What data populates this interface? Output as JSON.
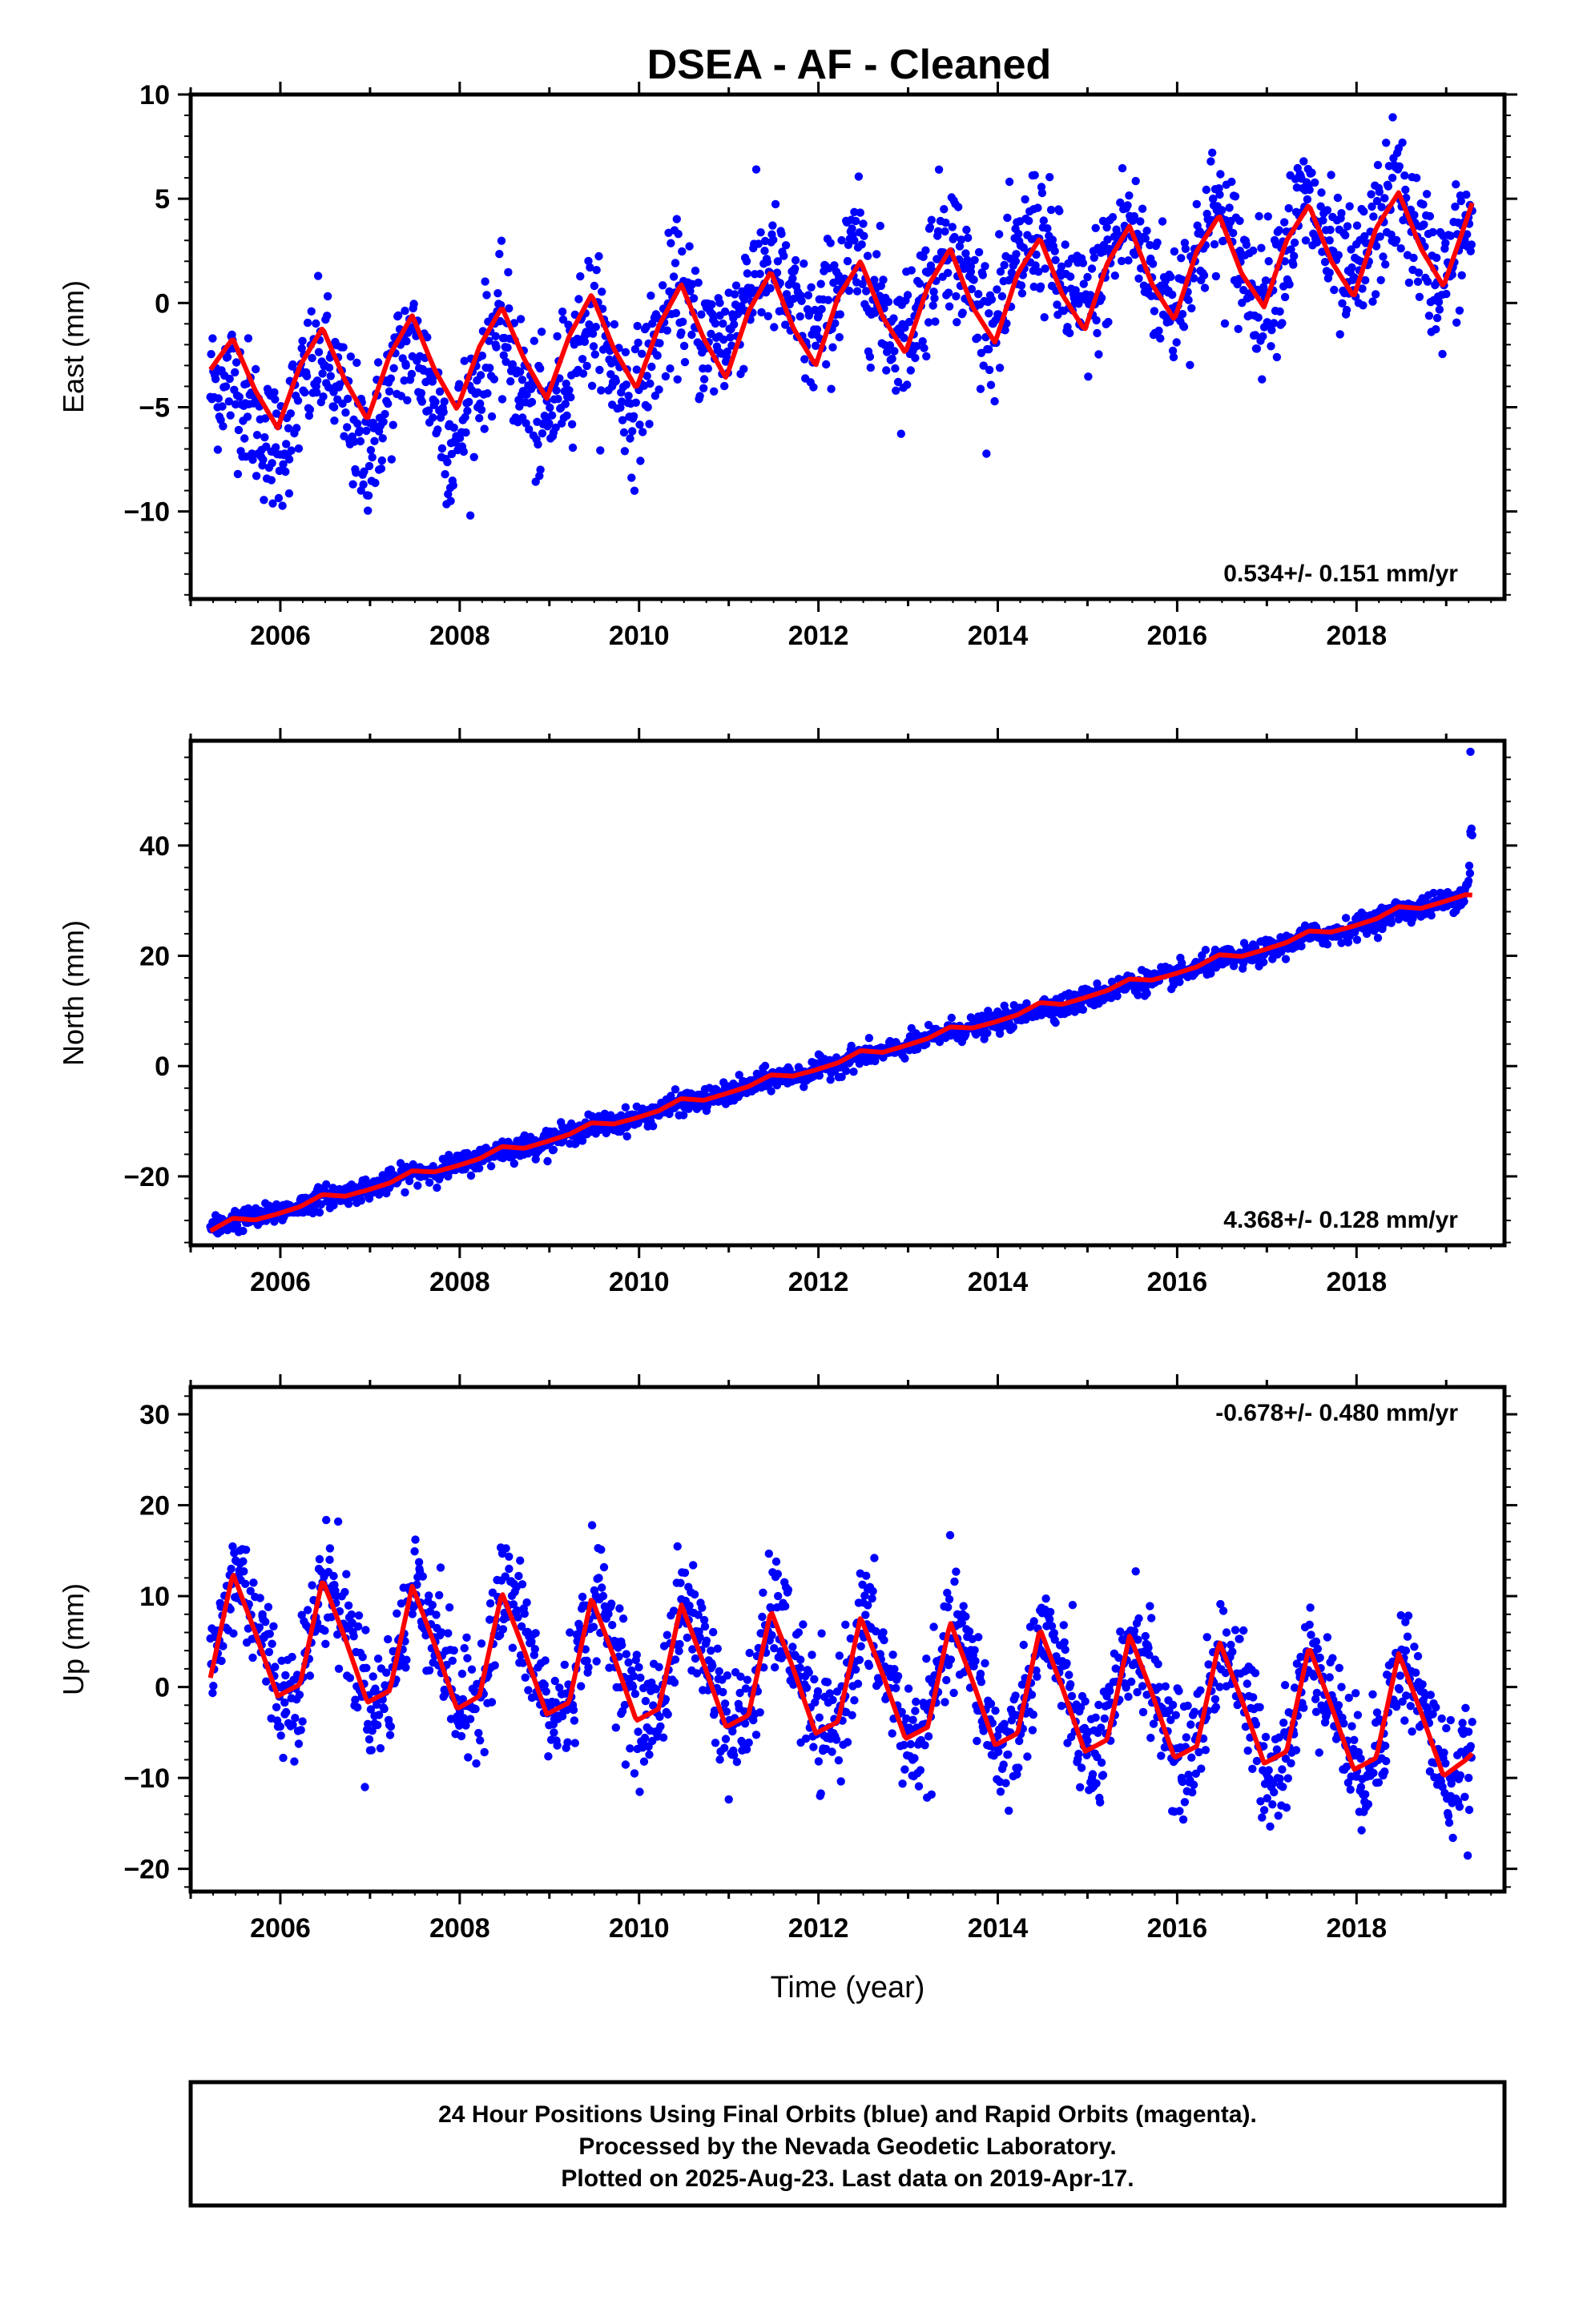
{
  "title": "DSEA  - AF - Cleaned",
  "colors": {
    "points": "#0000ff",
    "fit": "#ff0000",
    "frame": "#000000"
  },
  "footer": {
    "line1": "24 Hour Positions Using Final Orbits (blue) and Rapid Orbits (magenta).",
    "line2": "Processed by the Nevada Geodetic Laboratory.",
    "line3": "Plotted on 2025-Aug-23. Last data on 2019-Apr-17."
  },
  "chart_data": [
    {
      "type": "scatter",
      "ylabel": "East (mm)",
      "xlabel": "",
      "xlim": [
        2005.0,
        2019.65
      ],
      "ylim": [
        -14.2,
        10.0
      ],
      "xticks": [
        2006,
        2008,
        2010,
        2012,
        2014,
        2016,
        2018
      ],
      "yticks": [
        -10,
        -5,
        0,
        5,
        10
      ],
      "rate_label": "0.534+/- 0.151 mm/yr",
      "rate_position": "bottom-right",
      "data_range": [
        2005.22,
        2019.29
      ],
      "series": [
        {
          "kind": "points",
          "x": [
            2005.3,
            2005.6,
            2005.9,
            2006.1,
            2006.4,
            2006.6,
            2006.9,
            2007.1,
            2007.4,
            2007.7,
            2007.9,
            2008.2,
            2008.4,
            2008.7,
            2008.9,
            2009.2,
            2009.4,
            2009.7,
            2009.9,
            2010.2,
            2010.4,
            2010.7,
            2010.9,
            2011.2,
            2011.4,
            2011.7,
            2011.9,
            2012.2,
            2012.4,
            2012.7,
            2012.9,
            2013.2,
            2013.4,
            2013.7,
            2013.9,
            2014.2,
            2014.4,
            2014.7,
            2014.9,
            2015.2,
            2015.4,
            2015.7,
            2015.9,
            2016.2,
            2016.4,
            2016.7,
            2016.9,
            2017.2,
            2017.4,
            2017.7,
            2017.9,
            2018.2,
            2018.4,
            2018.7,
            2018.9,
            2019.2
          ],
          "y": [
            -5.0,
            -6.5,
            -8.5,
            -7.5,
            -4.0,
            -5.0,
            -9.0,
            -8.0,
            -3.0,
            -5.5,
            -9.5,
            -5.0,
            -2.0,
            -5.5,
            -8.0,
            -4.5,
            -1.5,
            -4.0,
            -6.5,
            -2.5,
            0.5,
            -2.0,
            0.0,
            2.0,
            2.5,
            1.0,
            -0.5,
            1.5,
            3.0,
            0.0,
            -1.5,
            1.5,
            4.5,
            1.5,
            -0.5,
            2.0,
            4.5,
            1.5,
            0.0,
            1.5,
            4.5,
            2.0,
            0.5,
            2.0,
            5.0,
            2.5,
            0.5,
            2.0,
            5.5,
            3.0,
            1.0,
            3.0,
            6.0,
            3.0,
            1.0,
            3.0
          ]
        },
        {
          "kind": "fit",
          "x": [
            2005.22,
            2005.47,
            2005.72,
            2005.97,
            2006.22,
            2006.47,
            2006.72,
            2006.97,
            2007.22,
            2007.47,
            2007.72,
            2007.97,
            2008.22,
            2008.47,
            2008.72,
            2008.97,
            2009.22,
            2009.47,
            2009.72,
            2009.97,
            2010.22,
            2010.47,
            2010.72,
            2010.97,
            2011.22,
            2011.47,
            2011.72,
            2011.97,
            2012.22,
            2012.47,
            2012.72,
            2012.97,
            2013.22,
            2013.47,
            2013.72,
            2013.97,
            2014.22,
            2014.47,
            2014.72,
            2014.97,
            2015.22,
            2015.47,
            2015.72,
            2015.97,
            2016.22,
            2016.47,
            2016.72,
            2016.97,
            2017.22,
            2017.47,
            2017.72,
            2017.97,
            2018.22,
            2018.47,
            2018.72,
            2018.97,
            2019.22,
            2019.29
          ],
          "y": [
            -3.2,
            -1.7,
            -4.2,
            -6.0,
            -3.0,
            -1.2,
            -3.7,
            -5.6,
            -2.5,
            -0.6,
            -3.2,
            -5.1,
            -2.1,
            -0.2,
            -2.7,
            -4.6,
            -1.6,
            0.4,
            -2.2,
            -4.1,
            -1.1,
            0.9,
            -1.7,
            -3.6,
            -0.4,
            1.5,
            -1.2,
            -3.0,
            0.3,
            2.0,
            -0.7,
            -2.4,
            0.8,
            2.6,
            -0.2,
            -1.9,
            1.4,
            3.1,
            0.4,
            -1.3,
            1.9,
            3.7,
            0.9,
            -0.8,
            2.5,
            4.2,
            1.4,
            -0.2,
            3.0,
            4.7,
            2.0,
            0.3,
            3.6,
            5.3,
            2.6,
            0.8,
            3.9,
            4.8
          ]
        }
      ]
    },
    {
      "type": "scatter",
      "ylabel": "North (mm)",
      "xlabel": "",
      "xlim": [
        2005.0,
        2019.65
      ],
      "ylim": [
        -32.5,
        59.0
      ],
      "xticks": [
        2006,
        2008,
        2010,
        2012,
        2014,
        2016,
        2018
      ],
      "yticks": [
        -20,
        0,
        20,
        40
      ],
      "rate_label": "4.368+/- 0.128 mm/yr",
      "rate_position": "bottom-right",
      "data_range": [
        2005.22,
        2019.29
      ],
      "series": [
        {
          "kind": "points",
          "x": [
            2005.3,
            2005.8,
            2006.3,
            2006.8,
            2007.3,
            2007.8,
            2008.3,
            2008.8,
            2009.3,
            2009.8,
            2010.3,
            2010.8,
            2011.3,
            2011.8,
            2012.3,
            2012.8,
            2013.3,
            2013.8,
            2014.3,
            2014.8,
            2015.3,
            2015.8,
            2016.3,
            2016.8,
            2017.3,
            2017.8,
            2018.3,
            2018.8,
            2019.2,
            2019.27,
            2019.27
          ],
          "y": [
            -29.0,
            -27.0,
            -25.0,
            -22.5,
            -20.5,
            -18.5,
            -16.5,
            -14.0,
            -12.0,
            -10.0,
            -8.0,
            -6.0,
            -3.5,
            -1.5,
            0.5,
            2.5,
            5.0,
            7.0,
            9.0,
            11.0,
            13.5,
            15.5,
            17.5,
            19.5,
            22.0,
            24.0,
            26.5,
            29.0,
            31.0,
            42.5,
            57.0
          ]
        },
        {
          "kind": "fit",
          "x": [
            2005.22,
            2005.47,
            2005.72,
            2005.97,
            2006.22,
            2006.47,
            2006.72,
            2006.97,
            2007.22,
            2007.47,
            2007.72,
            2007.97,
            2008.22,
            2008.47,
            2008.72,
            2008.97,
            2009.22,
            2009.47,
            2009.72,
            2009.97,
            2010.22,
            2010.47,
            2010.72,
            2010.97,
            2011.22,
            2011.47,
            2011.72,
            2011.97,
            2012.22,
            2012.47,
            2012.72,
            2012.97,
            2013.22,
            2013.47,
            2013.72,
            2013.97,
            2014.22,
            2014.47,
            2014.72,
            2014.97,
            2015.22,
            2015.47,
            2015.72,
            2015.97,
            2016.22,
            2016.47,
            2016.72,
            2016.97,
            2017.22,
            2017.47,
            2017.72,
            2017.97,
            2018.22,
            2018.47,
            2018.72,
            2018.97,
            2019.22,
            2019.29
          ],
          "y": [
            -29.9,
            -27.6,
            -27.9,
            -26.8,
            -25.5,
            -23.3,
            -23.6,
            -22.5,
            -21.2,
            -19.0,
            -19.2,
            -18.1,
            -16.8,
            -14.6,
            -14.9,
            -13.7,
            -12.4,
            -10.3,
            -10.5,
            -9.4,
            -8.1,
            -5.9,
            -6.2,
            -5.0,
            -3.7,
            -1.6,
            -1.8,
            -0.7,
            0.6,
            2.8,
            2.5,
            3.7,
            5.0,
            7.1,
            6.9,
            8.0,
            9.3,
            11.5,
            11.2,
            12.4,
            13.7,
            15.8,
            15.6,
            16.7,
            18.0,
            20.2,
            19.9,
            21.1,
            22.4,
            24.5,
            24.3,
            25.4,
            26.7,
            28.9,
            28.6,
            29.8,
            31.1,
            31.0
          ]
        }
      ]
    },
    {
      "type": "scatter",
      "ylabel": "Up (mm)",
      "xlabel": "Time (year)",
      "xlim": [
        2005.0,
        2019.65
      ],
      "ylim": [
        -22.5,
        33.0
      ],
      "xticks": [
        2006,
        2008,
        2010,
        2012,
        2014,
        2016,
        2018
      ],
      "yticks": [
        -20,
        -10,
        0,
        10,
        20,
        30
      ],
      "rate_label": "-0.678+/- 0.480 mm/yr",
      "rate_position": "top-right",
      "data_range": [
        2005.22,
        2019.29
      ],
      "series": [
        {
          "kind": "points",
          "x": [
            2005.3,
            2005.55,
            2005.8,
            2006.05,
            2006.3,
            2006.55,
            2006.8,
            2007.05,
            2007.3,
            2007.55,
            2007.8,
            2008.05,
            2008.3,
            2008.55,
            2008.8,
            2009.05,
            2009.3,
            2009.55,
            2009.8,
            2010.05,
            2010.3,
            2010.55,
            2010.8,
            2011.05,
            2011.3,
            2011.55,
            2011.8,
            2012.05,
            2012.3,
            2012.55,
            2012.8,
            2013.05,
            2013.3,
            2013.55,
            2013.8,
            2014.05,
            2014.3,
            2014.55,
            2014.8,
            2015.05,
            2015.3,
            2015.55,
            2015.8,
            2016.05,
            2016.3,
            2016.55,
            2016.8,
            2017.05,
            2017.3,
            2017.55,
            2017.8,
            2018.05,
            2018.3,
            2018.55,
            2018.8,
            2019.05,
            2019.25
          ],
          "y": [
            3.0,
            15.0,
            8.0,
            -3.0,
            4.0,
            14.0,
            7.0,
            -4.0,
            3.0,
            13.0,
            6.0,
            -4.0,
            2.0,
            13.0,
            5.0,
            -5.0,
            2.0,
            12.0,
            5.0,
            -6.0,
            1.0,
            11.0,
            4.0,
            -7.0,
            0.0,
            10.0,
            3.0,
            -7.0,
            -1.0,
            9.0,
            2.0,
            -8.0,
            -1.0,
            8.0,
            1.0,
            -9.0,
            -2.0,
            8.0,
            0.0,
            -10.0,
            -3.0,
            7.0,
            0.0,
            -10.0,
            -3.0,
            6.0,
            -1.0,
            -11.0,
            -4.0,
            5.0,
            -2.0,
            -11.0,
            -4.0,
            4.0,
            -3.0,
            -12.0,
            -10.0
          ]
        },
        {
          "kind": "fit",
          "x": [
            2005.22,
            2005.47,
            2005.72,
            2005.97,
            2006.22,
            2006.47,
            2006.72,
            2006.97,
            2007.22,
            2007.47,
            2007.72,
            2007.97,
            2008.22,
            2008.47,
            2008.72,
            2008.97,
            2009.22,
            2009.47,
            2009.72,
            2009.97,
            2010.22,
            2010.47,
            2010.72,
            2010.97,
            2011.22,
            2011.47,
            2011.72,
            2011.97,
            2012.22,
            2012.47,
            2012.72,
            2012.97,
            2013.22,
            2013.47,
            2013.72,
            2013.97,
            2014.22,
            2014.47,
            2014.72,
            2014.97,
            2015.22,
            2015.47,
            2015.72,
            2015.97,
            2016.22,
            2016.47,
            2016.72,
            2016.97,
            2017.22,
            2017.47,
            2017.72,
            2017.97,
            2018.22,
            2018.47,
            2018.72,
            2018.97,
            2019.22,
            2019.29
          ],
          "y": [
            1.0,
            12.5,
            6.0,
            -1.0,
            0.3,
            11.8,
            5.4,
            -1.7,
            -0.4,
            11.1,
            4.7,
            -2.4,
            -1.0,
            10.4,
            4.0,
            -3.0,
            -1.7,
            9.8,
            3.3,
            -3.7,
            -2.4,
            9.1,
            2.6,
            -4.4,
            -3.1,
            8.4,
            2.0,
            -5.1,
            -3.8,
            7.7,
            1.3,
            -5.7,
            -4.4,
            7.1,
            0.6,
            -6.4,
            -5.1,
            6.4,
            -0.1,
            -7.1,
            -5.8,
            5.7,
            -0.7,
            -7.8,
            -6.5,
            5.0,
            -1.4,
            -8.4,
            -7.1,
            4.4,
            -2.1,
            -9.1,
            -7.8,
            3.7,
            -2.8,
            -9.8,
            -8.0,
            -7.3
          ]
        }
      ]
    }
  ]
}
